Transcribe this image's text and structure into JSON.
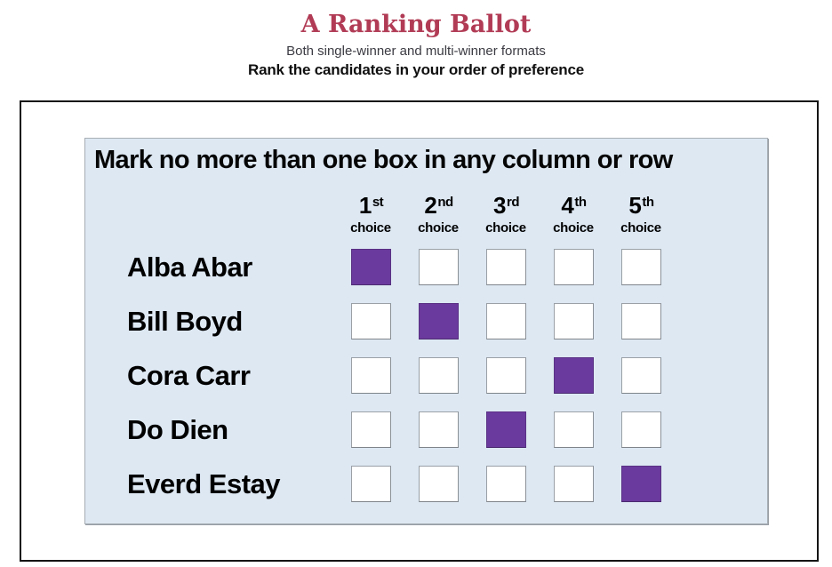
{
  "header": {
    "title": "A Ranking Ballot",
    "subtitle": "Both single-winner and multi-winner formats",
    "instruction": "Rank the candidates in your order of preference"
  },
  "ballot": {
    "rule": "Mark no more than one box in any column or row",
    "columns": [
      {
        "rank": "1",
        "suffix": "st",
        "label": "choice"
      },
      {
        "rank": "2",
        "suffix": "nd",
        "label": "choice"
      },
      {
        "rank": "3",
        "suffix": "rd",
        "label": "choice"
      },
      {
        "rank": "4",
        "suffix": "th",
        "label": "choice"
      },
      {
        "rank": "5",
        "suffix": "th",
        "label": "choice"
      }
    ],
    "candidates": [
      {
        "name": "Alba Abar",
        "selected_rank": 1
      },
      {
        "name": "Bill Boyd",
        "selected_rank": 2
      },
      {
        "name": "Cora Carr",
        "selected_rank": 4
      },
      {
        "name": "Do Dien",
        "selected_rank": 3
      },
      {
        "name": "Everd Estay",
        "selected_rank": 5
      }
    ],
    "colors": {
      "selected_fill": "#6b3a9e",
      "panel_background": "#dde8f3",
      "title_color": "#b13b55"
    }
  }
}
